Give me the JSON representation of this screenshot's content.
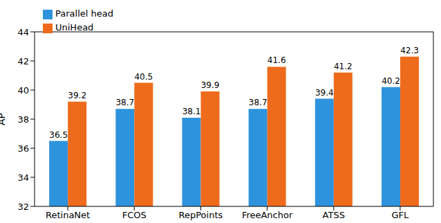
{
  "chart_data": {
    "type": "bar",
    "categories": [
      "RetinaNet",
      "FCOS",
      "RepPoints",
      "FreeAnchor",
      "ATSS",
      "GFL"
    ],
    "series": [
      {
        "name": "Parallel head",
        "color": "#2e93dd",
        "values": [
          36.5,
          38.7,
          38.1,
          38.7,
          39.4,
          40.2
        ]
      },
      {
        "name": "UniHead",
        "color": "#ee6b1c",
        "values": [
          39.2,
          40.5,
          39.9,
          41.6,
          41.2,
          42.3
        ]
      }
    ],
    "y_label": "AP",
    "ylim": [
      32,
      44
    ],
    "yticks": [
      32,
      34,
      36,
      38,
      40,
      42,
      44
    ],
    "grid": false,
    "legend": "upper left",
    "data_labels": true
  }
}
